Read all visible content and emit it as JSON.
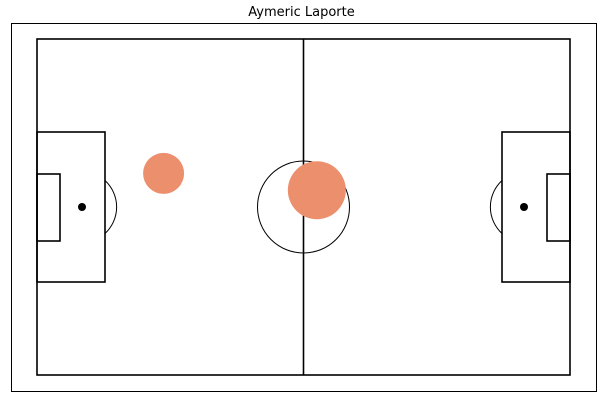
{
  "chart_data": {
    "type": "scatter",
    "title": "Aymeric Laporte",
    "xlabel": "",
    "ylabel": "",
    "xlim": [
      0,
      120
    ],
    "ylim": [
      0,
      80
    ],
    "grid": false,
    "colors": {
      "marker": "#ec8f6c",
      "lines": "#000000",
      "background": "#ffffff"
    },
    "points": [
      {
        "x": 28.5,
        "y": 48.0,
        "value": 1
      },
      {
        "x": 63.0,
        "y": 44.0,
        "value": 2
      }
    ]
  }
}
